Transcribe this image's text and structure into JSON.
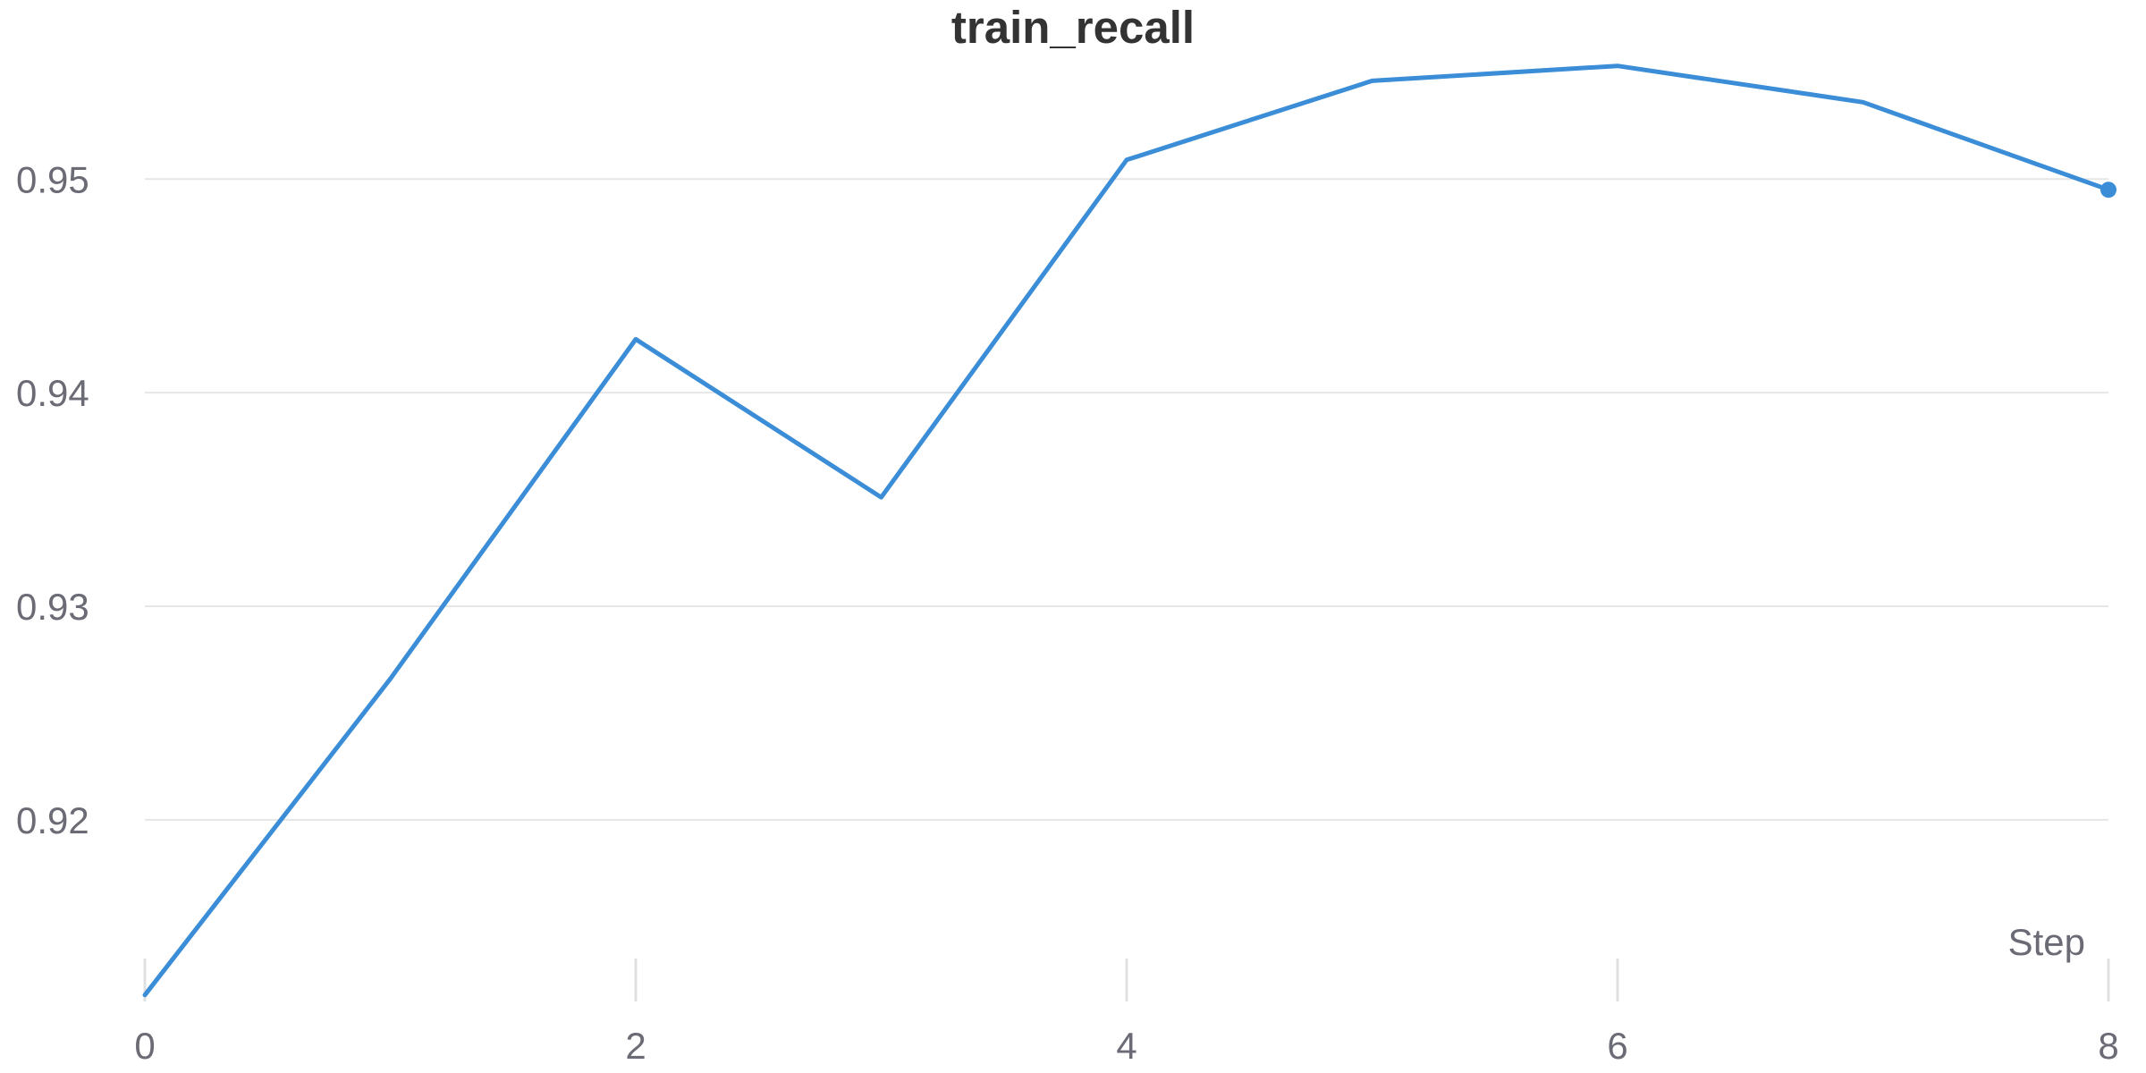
{
  "chart_data": {
    "type": "line",
    "title": "train_recall",
    "xlabel": "Step",
    "ylabel": "",
    "xlim": [
      0,
      8
    ],
    "ylim": [
      0.912,
      0.9565
    ],
    "x_ticks": [
      0,
      2,
      4,
      6,
      8
    ],
    "y_ticks": [
      0.92,
      0.93,
      0.94,
      0.95
    ],
    "grid": true,
    "color": "#3a8dd6",
    "series": [
      {
        "x": [
          0,
          1,
          2,
          3,
          4,
          5,
          6,
          7,
          8
        ],
        "values": [
          0.9118,
          0.9266,
          0.9425,
          0.9351,
          0.9509,
          0.9546,
          0.9553,
          0.9536,
          0.9495
        ]
      }
    ]
  }
}
